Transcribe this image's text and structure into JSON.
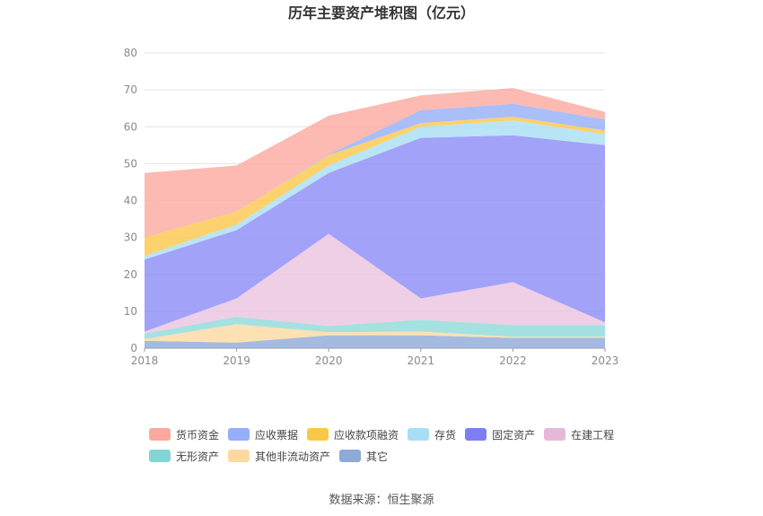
{
  "chart_data": {
    "type": "area",
    "stacked": true,
    "title": "历年主要资产堆积图（亿元）",
    "categories": [
      "2018",
      "2019",
      "2020",
      "2021",
      "2022",
      "2023"
    ],
    "ylim": [
      0,
      80
    ],
    "yticks": [
      0,
      10,
      20,
      30,
      40,
      50,
      60,
      70,
      80
    ],
    "grid": true,
    "legend_position": "bottom",
    "series": [
      {
        "name": "其它",
        "color": "#8fa9d8",
        "values": [
          2.0,
          1.5,
          3.5,
          3.5,
          2.8,
          2.8
        ]
      },
      {
        "name": "其他非流动资产",
        "color": "#fdd9a0",
        "values": [
          0.5,
          5.0,
          0.8,
          1.0,
          0.3,
          0.3
        ]
      },
      {
        "name": "无形资产",
        "color": "#8dd9d9",
        "values": [
          1.5,
          2.0,
          1.7,
          3.2,
          3.2,
          3.2
        ]
      },
      {
        "name": "在建工程",
        "color": "#ebc3e0",
        "values": [
          0.5,
          5.0,
          25.0,
          5.8,
          11.6,
          0.7
        ]
      },
      {
        "name": "固定资产",
        "color": "#8b8bf6",
        "values": [
          19.5,
          18.5,
          16.5,
          43.5,
          39.8,
          48.0
        ]
      },
      {
        "name": "存货",
        "color": "#a8def5",
        "values": [
          1.0,
          1.5,
          2.0,
          3.0,
          4.0,
          3.0
        ]
      },
      {
        "name": "应收款项融资",
        "color": "#fbc74a",
        "values": [
          5.0,
          3.5,
          2.8,
          1.0,
          1.0,
          1.0
        ]
      },
      {
        "name": "应收票据",
        "color": "#95aef9",
        "values": [
          0.0,
          0.0,
          0.2,
          3.5,
          3.5,
          3.0
        ]
      },
      {
        "name": "货币资金",
        "color": "#fba99f",
        "values": [
          17.5,
          12.5,
          10.5,
          4.0,
          4.3,
          2.0
        ]
      }
    ]
  },
  "legend": {
    "row1": [
      {
        "label": "货币资金",
        "color": "#fba99f"
      },
      {
        "label": "应收票据",
        "color": "#95aef9"
      },
      {
        "label": "应收款项融资",
        "color": "#fbc74a"
      },
      {
        "label": "存货",
        "color": "#a8def5"
      },
      {
        "label": "固定资产",
        "color": "#7e7ef3"
      },
      {
        "label": "在建工程",
        "color": "#e6b9da"
      }
    ],
    "row2": [
      {
        "label": "无形资产",
        "color": "#83d5d5"
      },
      {
        "label": "其他非流动资产",
        "color": "#fdd9a0"
      },
      {
        "label": "其它",
        "color": "#8fa9d8"
      }
    ]
  },
  "source": "数据来源：恒生聚源"
}
